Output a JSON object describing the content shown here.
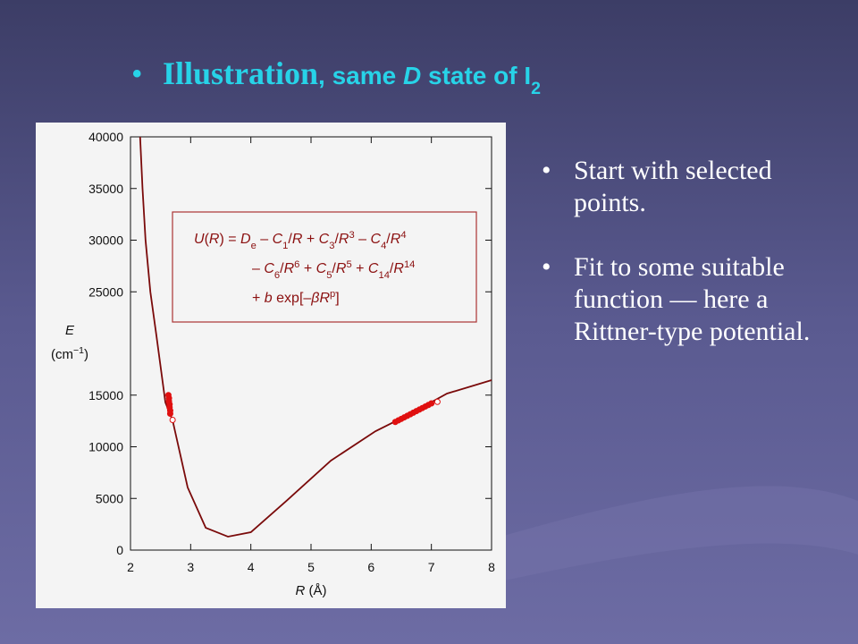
{
  "title": {
    "segments": [
      {
        "text": "Illustration",
        "font": "serif"
      },
      {
        "text": ", same ",
        "font": "sans"
      },
      {
        "text": "D",
        "font": "sans",
        "style": "i"
      },
      {
        "text": " state of I",
        "font": "sans"
      },
      {
        "text": "2",
        "font": "sans",
        "style": "sub"
      }
    ]
  },
  "bullets": [
    "Start with selected points.",
    "Fit to some suitable function — here a Rittner-type potential."
  ],
  "chart_data": {
    "type": "line",
    "xlabel": {
      "segments": [
        {
          "text": "R",
          "style": "i"
        },
        {
          "text": " (Å)"
        }
      ]
    },
    "ylabel": [
      {
        "segments": [
          {
            "text": "E",
            "style": "i"
          }
        ]
      },
      {
        "segments": [
          {
            "text": "(cm"
          },
          {
            "text": "−1",
            "style": "sup"
          },
          {
            "text": ")"
          }
        ]
      }
    ],
    "xlim": [
      2,
      8
    ],
    "ylim": [
      0,
      40000
    ],
    "xticks": [
      2,
      3,
      4,
      5,
      6,
      7,
      8
    ],
    "yticks": [
      0,
      5000,
      10000,
      15000,
      25000,
      30000,
      35000,
      40000
    ],
    "annotation": [
      {
        "segments": [
          {
            "text": "U",
            "style": "i"
          },
          {
            "text": "("
          },
          {
            "text": "R",
            "style": "i"
          },
          {
            "text": ") = "
          },
          {
            "text": "D",
            "style": "i"
          },
          {
            "text": "e",
            "style": "sub"
          },
          {
            "text": " – "
          },
          {
            "text": "C",
            "style": "i"
          },
          {
            "text": "1",
            "style": "sub"
          },
          {
            "text": "/"
          },
          {
            "text": "R",
            "style": "i"
          },
          {
            "text": " + "
          },
          {
            "text": "C",
            "style": "i"
          },
          {
            "text": "3",
            "style": "sub"
          },
          {
            "text": "/"
          },
          {
            "text": "R",
            "style": "i"
          },
          {
            "text": "3",
            "style": "sup"
          },
          {
            "text": " – "
          },
          {
            "text": "C",
            "style": "i"
          },
          {
            "text": "4",
            "style": "sub"
          },
          {
            "text": "/"
          },
          {
            "text": "R",
            "style": "i"
          },
          {
            "text": "4",
            "style": "sup"
          }
        ]
      },
      {
        "segments": [
          {
            "text": "– "
          },
          {
            "text": "C",
            "style": "i"
          },
          {
            "text": "6",
            "style": "sub"
          },
          {
            "text": "/"
          },
          {
            "text": "R",
            "style": "i"
          },
          {
            "text": "6",
            "style": "sup"
          },
          {
            "text": " + "
          },
          {
            "text": "C",
            "style": "i"
          },
          {
            "text": "5",
            "style": "sub"
          },
          {
            "text": "/"
          },
          {
            "text": "R",
            "style": "i"
          },
          {
            "text": "5",
            "style": "sup"
          },
          {
            "text": " + "
          },
          {
            "text": "C",
            "style": "i"
          },
          {
            "text": "14",
            "style": "sub"
          },
          {
            "text": "/"
          },
          {
            "text": "R",
            "style": "i"
          },
          {
            "text": "14",
            "style": "sup"
          }
        ]
      },
      {
        "segments": [
          {
            "text": "+ "
          },
          {
            "text": "b",
            "style": "i"
          },
          {
            "text": " exp[–"
          },
          {
            "text": "βR",
            "style": "i"
          },
          {
            "text": "p",
            "style": "sup"
          },
          {
            "text": "]"
          }
        ]
      }
    ],
    "series": [
      {
        "type": "line",
        "color": "#7a0a0a",
        "x": [
          2.16,
          2.2,
          2.25,
          2.33,
          2.43,
          2.58,
          2.7,
          2.95,
          3.25,
          3.62,
          4.0,
          4.59,
          5.33,
          6.07,
          6.67,
          7.26,
          8.0
        ],
        "y": [
          40000,
          35000,
          30000,
          25000,
          20800,
          14300,
          12550,
          6060,
          2160,
          1300,
          1730,
          4760,
          8660,
          11500,
          13250,
          15150,
          16450
        ]
      },
      {
        "type": "scatter",
        "color": "#e01010",
        "fill": "#e01010",
        "x": [
          2.63,
          2.64,
          2.64,
          2.65,
          2.65,
          2.66,
          2.66,
          6.4,
          6.45,
          6.5,
          6.55,
          6.6,
          6.65,
          6.7,
          6.75,
          6.8,
          6.85,
          6.9,
          6.95,
          7.0
        ],
        "y": [
          15000,
          14700,
          14400,
          14100,
          13800,
          13500,
          13200,
          12400,
          12550,
          12700,
          12850,
          13000,
          13150,
          13300,
          13450,
          13600,
          13750,
          13900,
          14050,
          14200
        ]
      },
      {
        "type": "scatter",
        "color": "#e01010",
        "fill": "#ffffff",
        "x": [
          2.7,
          7.1
        ],
        "y": [
          12600,
          14350
        ]
      }
    ]
  }
}
